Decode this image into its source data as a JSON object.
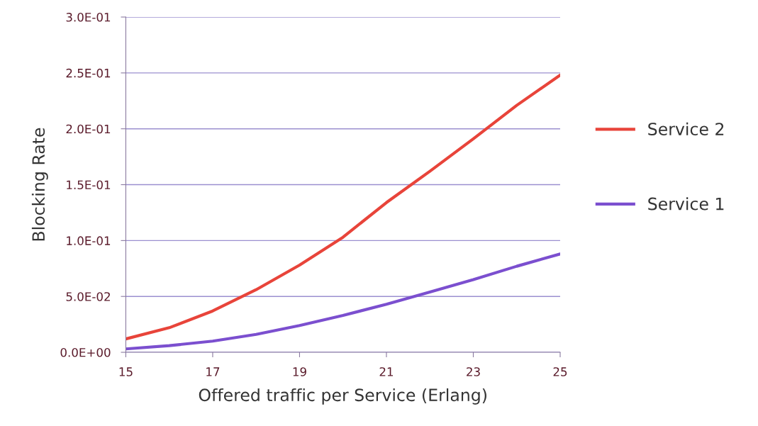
{
  "chart_data": {
    "type": "line",
    "xlabel": "Offered traffic per Service (Erlang)",
    "ylabel": "Blocking Rate",
    "x": [
      15,
      16,
      17,
      18,
      19,
      20,
      21,
      22,
      23,
      24,
      25
    ],
    "series": [
      {
        "name": "Service 2",
        "color": "#e8443a",
        "values": [
          0.012,
          0.022,
          0.037,
          0.056,
          0.078,
          0.103,
          0.134,
          0.162,
          0.191,
          0.221,
          0.248
        ]
      },
      {
        "name": "Service 1",
        "color": "#7b4fcf",
        "values": [
          0.003,
          0.006,
          0.01,
          0.016,
          0.024,
          0.033,
          0.043,
          0.054,
          0.065,
          0.077,
          0.088
        ]
      }
    ],
    "xlim": [
      15,
      25
    ],
    "xticks": [
      15,
      17,
      19,
      21,
      23,
      25
    ],
    "ylim": [
      0,
      0.3
    ],
    "yticks": [
      {
        "value": 0,
        "label": "0.0E+00"
      },
      {
        "value": 0.05,
        "label": "5.0E-02"
      },
      {
        "value": 0.1,
        "label": "1.0E-01"
      },
      {
        "value": 0.15,
        "label": "1.5E-01"
      },
      {
        "value": 0.2,
        "label": "2.0E-01"
      },
      {
        "value": 0.25,
        "label": "2.5E-01"
      },
      {
        "value": 0.3,
        "label": "3.0E-01"
      }
    ],
    "grid": "y",
    "legend": "right",
    "marker": "none",
    "line_style": "solid"
  }
}
